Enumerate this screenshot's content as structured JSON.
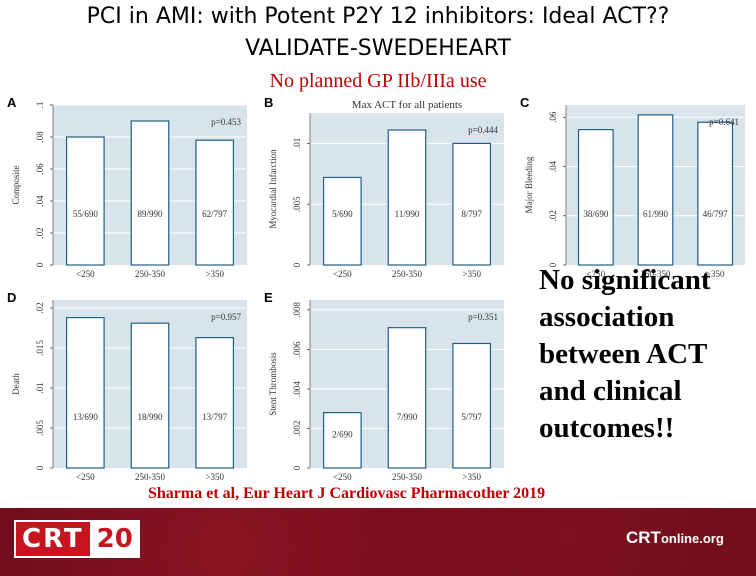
{
  "slide": {
    "title_line1": "PCI in AMI: with Potent P2Y 12 inhibitors:  Ideal ACT??",
    "title_line2": "VALIDATE-SWEDEHEART",
    "subtitle": "No planned GP IIb/IIIa use",
    "conclusion_lines": [
      "No significant",
      "association",
      "between ACT",
      "and clinical",
      "outcomes!!"
    ],
    "citation": "Sharma et al, Eur Heart J Cardiovasc Pharmacother 2019",
    "footer_logo": "CRT20",
    "footer_logo_parts": [
      "CRT",
      "20"
    ],
    "footer_site": "CRTonline.org",
    "footer_site_parts": [
      "CRT",
      "online",
      ".org"
    ]
  },
  "colors": {
    "plot_bg": "#d8e4ec",
    "bar_fill": "#ffffff",
    "bar_stroke": "#1f5f86",
    "title_red": "#c00000",
    "footer_bg": "#6b0b17",
    "logo_red": "#c8141e"
  },
  "chart_data": [
    {
      "panel": "A",
      "type": "bar",
      "title": "",
      "ylabel": "Composite",
      "xlabel": "",
      "categories": [
        "<250",
        "250-350",
        ">350"
      ],
      "values": [
        0.08,
        0.09,
        0.078
      ],
      "bar_labels": [
        "55/690",
        "89/990",
        "62/797"
      ],
      "ylim": [
        0,
        0.1
      ],
      "yticks": [
        0,
        0.02,
        0.04,
        0.06,
        0.08,
        0.1
      ],
      "ytick_labels": [
        "0",
        ".02",
        ".04",
        ".06",
        ".08",
        ".1"
      ],
      "pvalue": "p=0.453"
    },
    {
      "panel": "B",
      "type": "bar",
      "title": "Max ACT for all patients",
      "ylabel": "Myocardial Infarction",
      "xlabel": "",
      "categories": [
        "<250",
        "250-350",
        ">350"
      ],
      "values": [
        0.0072,
        0.0111,
        0.01
      ],
      "bar_labels": [
        "5/690",
        "11/990",
        "8/797"
      ],
      "ylim": [
        0,
        0.0125
      ],
      "yticks": [
        0,
        0.005,
        0.01
      ],
      "ytick_labels": [
        "0",
        ".005",
        ".01"
      ],
      "pvalue": "p=0.444"
    },
    {
      "panel": "C",
      "type": "bar",
      "title": "",
      "ylabel": "Major Bleeding",
      "xlabel": "",
      "categories": [
        "<250",
        "250-350",
        ">350"
      ],
      "values": [
        0.055,
        0.061,
        0.058
      ],
      "bar_labels": [
        "38/690",
        "61/990",
        "46/797"
      ],
      "ylim": [
        0,
        0.065
      ],
      "yticks": [
        0,
        0.02,
        0.04,
        0.06
      ],
      "ytick_labels": [
        "0",
        ".02",
        ".04",
        ".06"
      ],
      "pvalue": "p=0.641"
    },
    {
      "panel": "D",
      "type": "bar",
      "title": "",
      "ylabel": "Death",
      "xlabel": "",
      "categories": [
        "<250",
        "250-350",
        ">350"
      ],
      "values": [
        0.0188,
        0.0181,
        0.0163
      ],
      "bar_labels": [
        "13/690",
        "18/990",
        "13/797"
      ],
      "ylim": [
        0,
        0.021
      ],
      "yticks": [
        0,
        0.005,
        0.01,
        0.015,
        0.02
      ],
      "ytick_labels": [
        "0",
        ".005",
        ".01",
        ".015",
        ".02"
      ],
      "pvalue": "p=0.957"
    },
    {
      "panel": "E",
      "type": "bar",
      "title": "",
      "ylabel": "Stent Thrombosis",
      "xlabel": "",
      "categories": [
        "<250",
        "250-350",
        ">350"
      ],
      "values": [
        0.0028,
        0.0071,
        0.0063
      ],
      "bar_labels": [
        "2/690",
        "7/990",
        "5/797"
      ],
      "ylim": [
        0,
        0.0085
      ],
      "yticks": [
        0,
        0.002,
        0.004,
        0.006,
        0.008
      ],
      "ytick_labels": [
        "0",
        ".002",
        ".004",
        ".006",
        ".008"
      ],
      "pvalue": "p=0.351"
    }
  ]
}
